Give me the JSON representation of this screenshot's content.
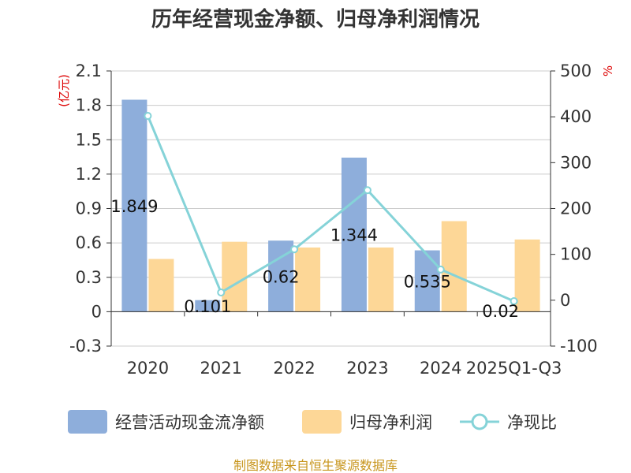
{
  "chart_data": {
    "type": "bar",
    "title": "历年经营现金净额、归母净利润情况",
    "categories": [
      "2020",
      "2021",
      "2022",
      "2023",
      "2024",
      "2025Q1-Q3"
    ],
    "series": [
      {
        "name": "经营活动现金流净额",
        "type": "bar",
        "axis": "left",
        "color": "#8eaedb",
        "values": [
          1.849,
          0.101,
          0.62,
          1.344,
          0.535,
          null
        ]
      },
      {
        "name": "归母净利润",
        "type": "bar",
        "axis": "left",
        "color": "#fdd797",
        "values": [
          0.46,
          0.61,
          0.56,
          0.56,
          0.79,
          0.63
        ]
      },
      {
        "name": "净现比",
        "type": "line",
        "axis": "right",
        "color": "#85d3d8",
        "values": [
          402,
          17,
          111,
          240,
          67,
          -2
        ]
      }
    ],
    "data_labels": [
      "1.849",
      "0.101",
      "0.62",
      "1.344",
      "0.535",
      "0.02"
    ],
    "left_axis": {
      "unit": "(亿元)",
      "ylim": [
        -0.3,
        2.1
      ],
      "ticks": [
        "-0.3",
        "0",
        "0.3",
        "0.6",
        "0.9",
        "1.2",
        "1.5",
        "1.8",
        "2.1"
      ]
    },
    "right_axis": {
      "unit": "%",
      "ylim": [
        -100,
        500
      ],
      "ticks": [
        "-100",
        "0",
        "100",
        "200",
        "300",
        "400",
        "500"
      ]
    },
    "grid": true,
    "legend_position": "bottom"
  },
  "source": "制图数据来自恒生聚源数据库"
}
